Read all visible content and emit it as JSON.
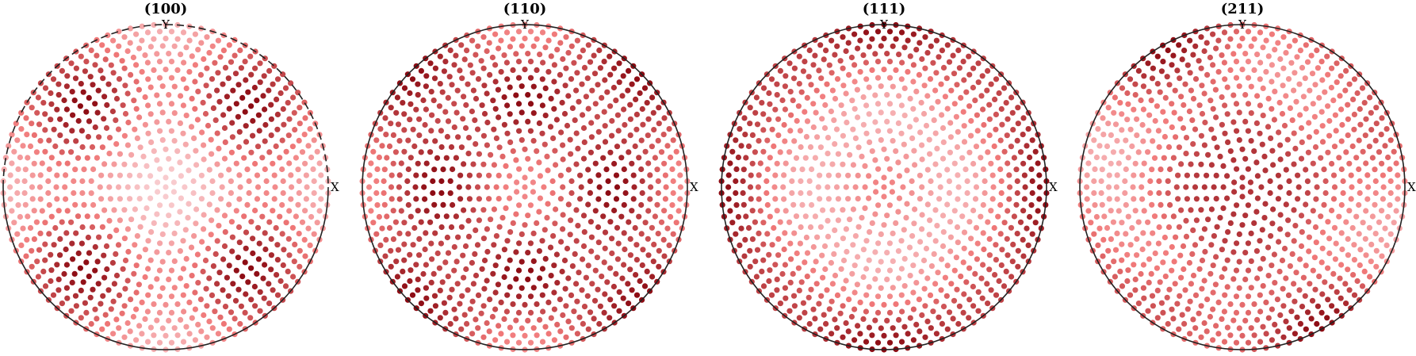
{
  "chart_data": [
    {
      "type": "scatter",
      "title": "(100)",
      "x_axis_label": "X",
      "y_axis_label": "Y",
      "upper_half_boundary": "dashed",
      "intensity_peaks_deg": [
        [
          60,
          45
        ],
        [
          60,
          135
        ],
        [
          60,
          225
        ],
        [
          60,
          315
        ]
      ],
      "intensity_scale": [
        0,
        1
      ]
    },
    {
      "type": "scatter",
      "title": "(110)",
      "x_axis_label": "X",
      "y_axis_label": "Y",
      "upper_half_boundary": "solid",
      "intensity_peaks_deg": [
        [
          45,
          0
        ],
        [
          45,
          90
        ],
        [
          45,
          180
        ],
        [
          45,
          270
        ],
        [
          90,
          45
        ],
        [
          90,
          135
        ]
      ],
      "intensity_scale": [
        0,
        1
      ]
    },
    {
      "type": "scatter",
      "title": "(111)",
      "x_axis_label": "X",
      "y_axis_label": "Y",
      "upper_half_boundary": "solid",
      "intensity_peaks_deg": [
        [
          0,
          0
        ],
        [
          70,
          45
        ],
        [
          70,
          135
        ],
        [
          70,
          225
        ],
        [
          70,
          315
        ],
        [
          90,
          90
        ],
        [
          90,
          270
        ],
        [
          90,
          0
        ],
        [
          90,
          180
        ]
      ],
      "intensity_scale": [
        0,
        1
      ]
    },
    {
      "type": "scatter",
      "title": "(211)",
      "x_axis_label": "X",
      "y_axis_label": "Y",
      "upper_half_boundary": "solid",
      "intensity_peaks_deg": [
        [
          30,
          0
        ],
        [
          30,
          90
        ],
        [
          30,
          180
        ],
        [
          30,
          270
        ],
        [
          80,
          120
        ],
        [
          80,
          240
        ],
        [
          80,
          20
        ],
        [
          80,
          300
        ]
      ],
      "intensity_scale": [
        0,
        1
      ]
    }
  ],
  "colors": {
    "low": "#fbe6ea",
    "mid": "#f07878",
    "high": "#8b0a12",
    "boundary": "#222222"
  }
}
